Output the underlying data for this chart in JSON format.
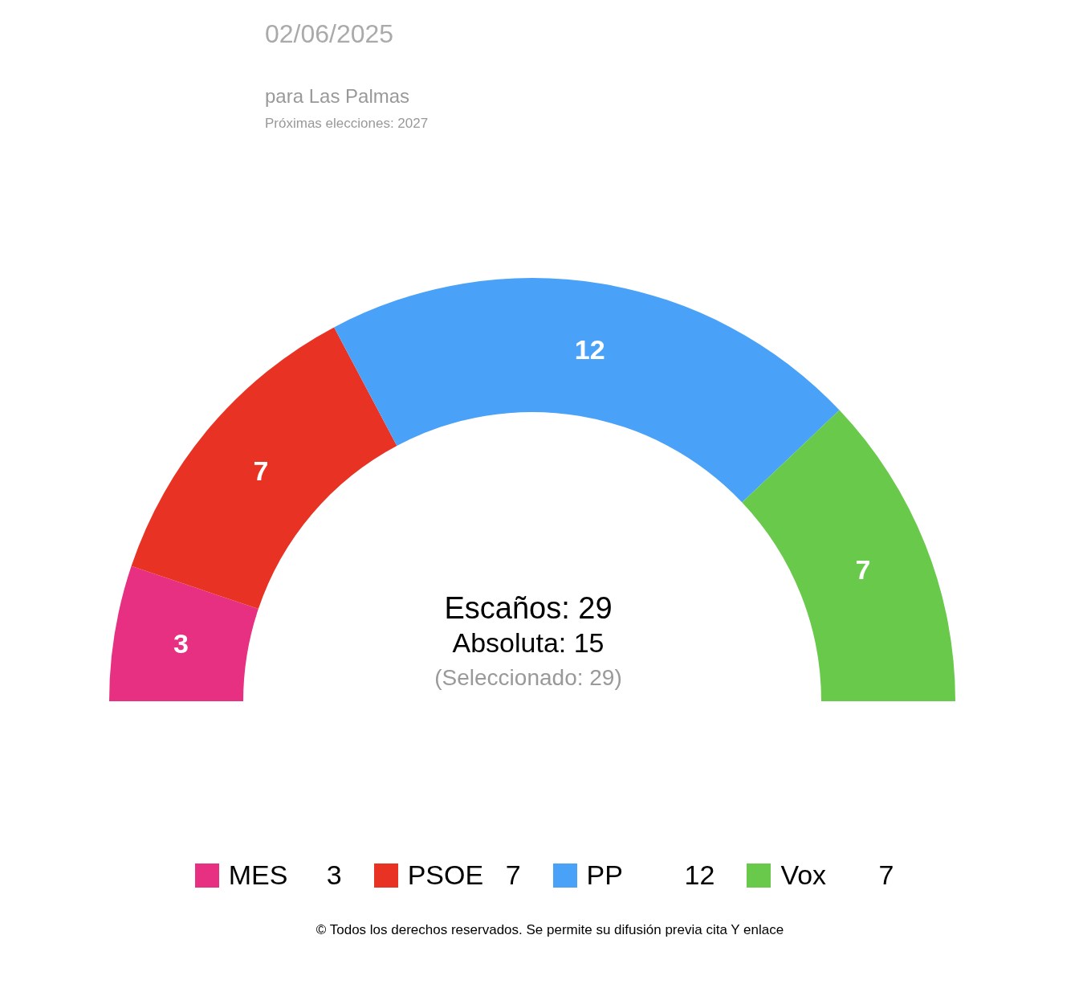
{
  "chart_data": {
    "type": "donut",
    "title": "02/06/2025",
    "subtitle": "para Las Palmas",
    "categories": [
      "MES",
      "PSOE",
      "PP",
      "Vox"
    ],
    "values": [
      3,
      7,
      12,
      7
    ],
    "colors": [
      "#e83083",
      "#e83324",
      "#49a1f8",
      "#68c94b"
    ],
    "value_labels": [
      "3",
      "7",
      "12",
      "7"
    ],
    "legend": "bottom",
    "annotations": [
      "Próximas elecciones: 2027",
      "Escaños: 29",
      "Absoluta: 15",
      "(Seleccionado: 29)",
      "© Todos los derechos reservados. Se permite su difusión previa cita Y enlace"
    ]
  }
}
